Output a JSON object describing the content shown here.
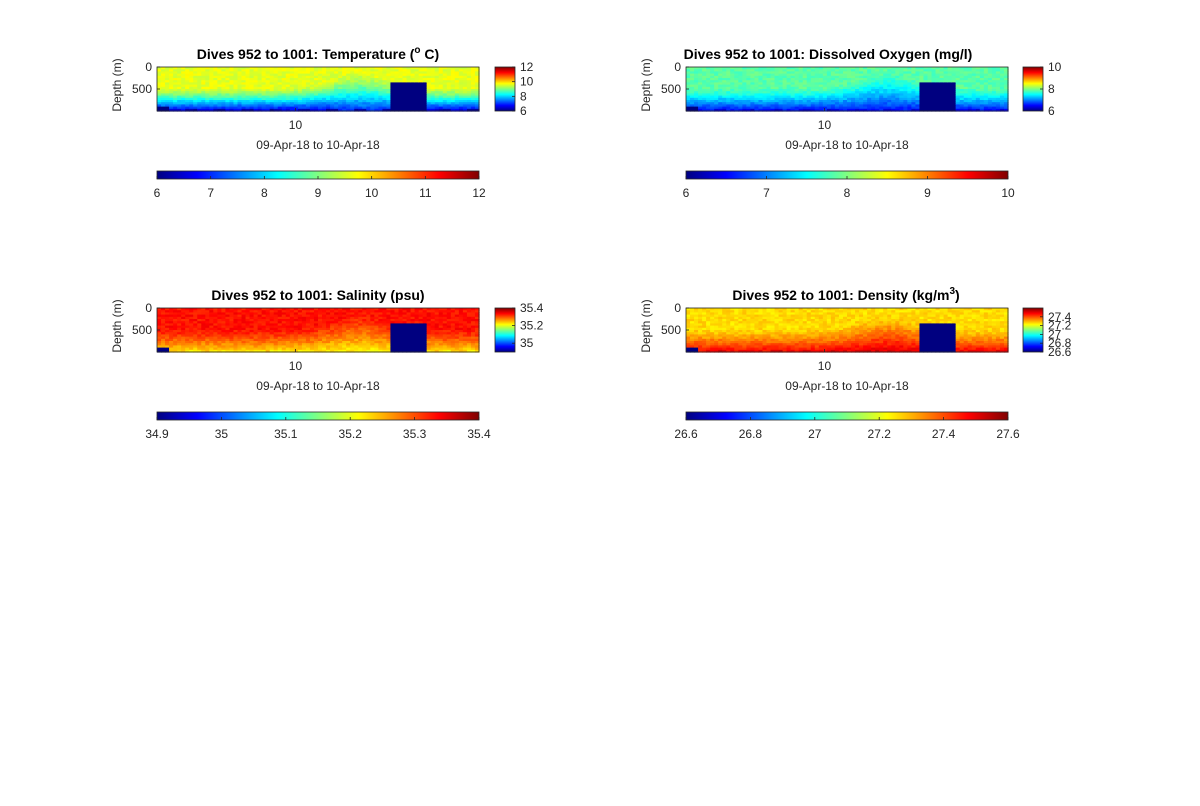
{
  "chart_data": [
    {
      "type": "heatmap",
      "variable": "temperature",
      "title": "Dives 952 to 1001: Temperature (",
      "title_sup": "o",
      "title_tail": " C)",
      "xlabel": "09-Apr-18 to 10-Apr-18",
      "ylabel": "Depth (m)",
      "xtick_labels": [
        "10"
      ],
      "ytick_labels": [
        "0",
        "500"
      ],
      "ylim": [
        0,
        1000
      ],
      "clim": [
        6,
        12
      ],
      "side_colorbar_ticks": [
        "12",
        "10",
        "8",
        "6"
      ],
      "side_colorbar_values": [
        12,
        10,
        8,
        6
      ],
      "bottom_colorbar_ticks": [
        "6",
        "7",
        "8",
        "9",
        "10",
        "11",
        "12"
      ],
      "bottom_colorbar_values": [
        6,
        7,
        8,
        9,
        10,
        11,
        12
      ],
      "colormap": "jet",
      "surface_value": 9.6,
      "deep_value": 6.3,
      "upwelling_value": 7.4,
      "gap_dives": [
        73,
        85
      ],
      "background_colors": [
        "#c6ff3a",
        "#9fff5f",
        "#6cfe93",
        "#2fc0ff",
        "#00009e"
      ]
    },
    {
      "type": "heatmap",
      "variable": "oxygen",
      "title": "Dives 952 to 1001: Dissolved Oxygen (mg/l)",
      "xlabel": "09-Apr-18 to 10-Apr-18",
      "ylabel": "Depth (m)",
      "xtick_labels": [
        "10"
      ],
      "ytick_labels": [
        "0",
        "500"
      ],
      "ylim": [
        0,
        1000
      ],
      "clim": [
        6,
        10
      ],
      "side_colorbar_ticks": [
        "10",
        "8",
        "6"
      ],
      "side_colorbar_values": [
        10,
        8,
        6
      ],
      "bottom_colorbar_ticks": [
        "6",
        "7",
        "8",
        "9",
        "10"
      ],
      "bottom_colorbar_values": [
        6,
        7,
        8,
        9,
        10
      ],
      "colormap": "jet",
      "surface_value": 7.85,
      "deep_value": 6.4,
      "upwelling_value": 6.6
    },
    {
      "type": "heatmap",
      "variable": "salinity",
      "title": "Dives 952 to 1001: Salinity (psu)",
      "xlabel": "09-Apr-18 to 10-Apr-18",
      "ylabel": "Depth (m)",
      "xtick_labels": [
        "10"
      ],
      "ytick_labels": [
        "0",
        "500"
      ],
      "ylim": [
        0,
        1000
      ],
      "clim": [
        34.9,
        35.4
      ],
      "side_colorbar_ticks": [
        "35.4",
        "35.2",
        "35"
      ],
      "side_colorbar_values": [
        35.4,
        35.2,
        35.0
      ],
      "bottom_colorbar_ticks": [
        "34.9",
        "35",
        "35.1",
        "35.2",
        "35.3",
        "35.4"
      ],
      "bottom_colorbar_values": [
        34.9,
        35.0,
        35.1,
        35.2,
        35.3,
        35.4
      ],
      "colormap": "jet",
      "surface_value": 35.33,
      "deep_value": 35.22,
      "upwelling_value": 35.2
    },
    {
      "type": "heatmap",
      "variable": "density",
      "title": "Dives 952 to 1001: Density (kg/m",
      "title_sup": "3",
      "title_tail": ")",
      "xlabel": "09-Apr-18 to 10-Apr-18",
      "ylabel": "Depth (m)",
      "xtick_labels": [
        "10"
      ],
      "ytick_labels": [
        "0",
        "500"
      ],
      "ylim": [
        0,
        1000
      ],
      "clim": [
        26.6,
        27.6
      ],
      "side_colorbar_ticks": [
        "27.4",
        "27.2",
        "27",
        "26.8",
        "26.6"
      ],
      "side_colorbar_values": [
        27.4,
        27.2,
        27.0,
        26.8,
        26.6
      ],
      "bottom_colorbar_ticks": [
        "26.6",
        "26.8",
        "27",
        "27.2",
        "27.4",
        "27.6"
      ],
      "bottom_colorbar_values": [
        26.6,
        26.8,
        27.0,
        27.2,
        27.4,
        27.6
      ],
      "colormap": "jet",
      "surface_value": 27.26,
      "deep_value": 27.5,
      "upwelling_value": 27.55
    }
  ]
}
